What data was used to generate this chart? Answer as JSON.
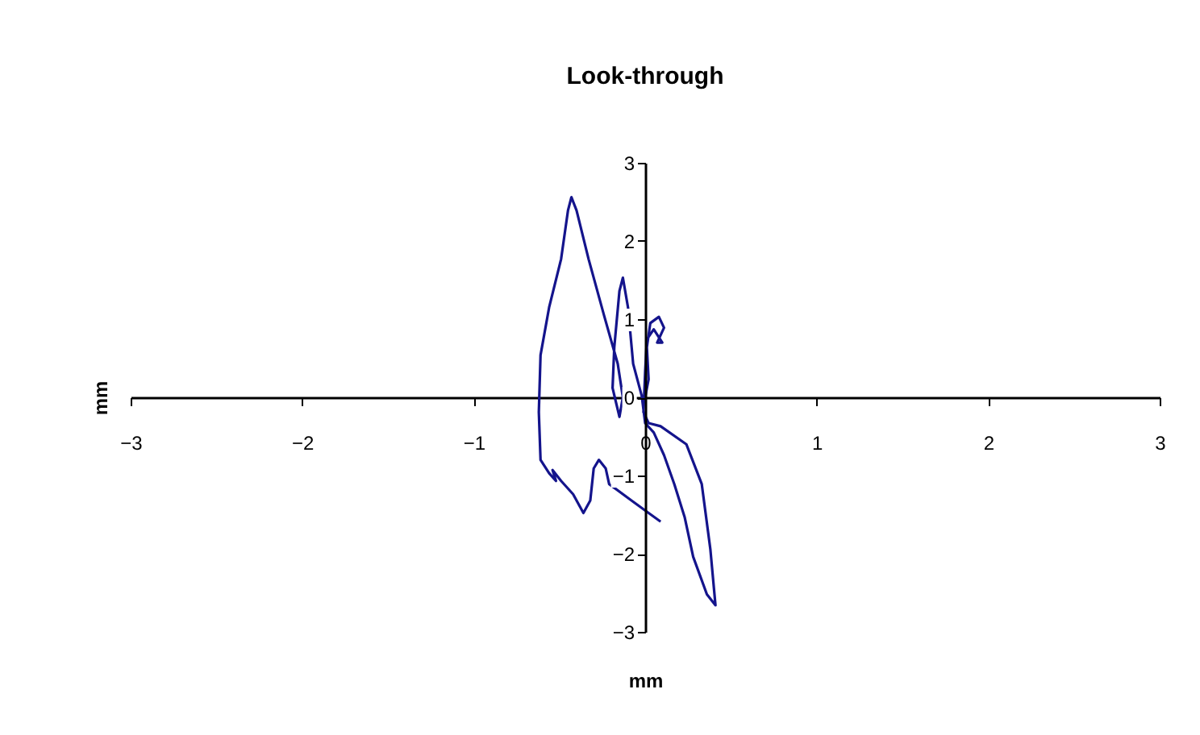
{
  "chart_data": {
    "type": "line",
    "title": "Look-through",
    "xlabel": "mm",
    "ylabel": "mm",
    "series": [
      {
        "color": "#14148c",
        "x": [
          0,
          0.02,
          0.01,
          0.03,
          0.08,
          0.11,
          0.07,
          0.1,
          0.05,
          0.01,
          0,
          -0.01,
          0.02,
          0.09,
          0.24,
          0.33,
          0.38,
          0.41,
          0.36,
          0.28,
          0.23,
          0.17,
          0.11,
          0.05,
          0,
          -0.02,
          -0.07,
          -0.1,
          -0.13,
          -0.15,
          -0.18,
          -0.19,
          -0.15,
          -0.13,
          -0.16,
          -0.24,
          -0.33,
          -0.4,
          -0.43,
          -0.45,
          -0.49,
          -0.56,
          -0.61,
          -0.62,
          -0.61,
          -0.56,
          -0.52,
          -0.54,
          -0.49,
          -0.42,
          -0.36,
          -0.32,
          -0.3,
          -0.27,
          -0.23,
          -0.21,
          -0.08,
          0.02,
          0.09
        ],
        "values": [
          0,
          0.23,
          0.64,
          0.95,
          1.03,
          0.89,
          0.7,
          0.7,
          0.87,
          0.74,
          0.33,
          -0.19,
          -0.33,
          -0.37,
          -0.6,
          -1.11,
          -1.94,
          -2.66,
          -2.52,
          -2.04,
          -1.53,
          -1.11,
          -0.74,
          -0.45,
          -0.33,
          0.02,
          0.43,
          1.15,
          1.53,
          1.36,
          0.64,
          0.12,
          -0.25,
          0,
          0.43,
          1.05,
          1.77,
          2.39,
          2.56,
          2.39,
          1.77,
          1.15,
          0.54,
          -0.19,
          -0.8,
          -0.97,
          -1.07,
          -0.93,
          -1.07,
          -1.24,
          -1.48,
          -1.32,
          -0.91,
          -0.8,
          -0.91,
          -1.11,
          -1.32,
          -1.48,
          -1.59
        ]
      }
    ],
    "xlim": [
      -3,
      3
    ],
    "ylim": [
      -3,
      3
    ],
    "xticks": [
      -3,
      -2,
      -1,
      0,
      1,
      2,
      3
    ],
    "yticks": [
      -3,
      -2,
      -1,
      0,
      1,
      2,
      3
    ],
    "grid": false,
    "marker": "none",
    "line_style": "solid"
  }
}
